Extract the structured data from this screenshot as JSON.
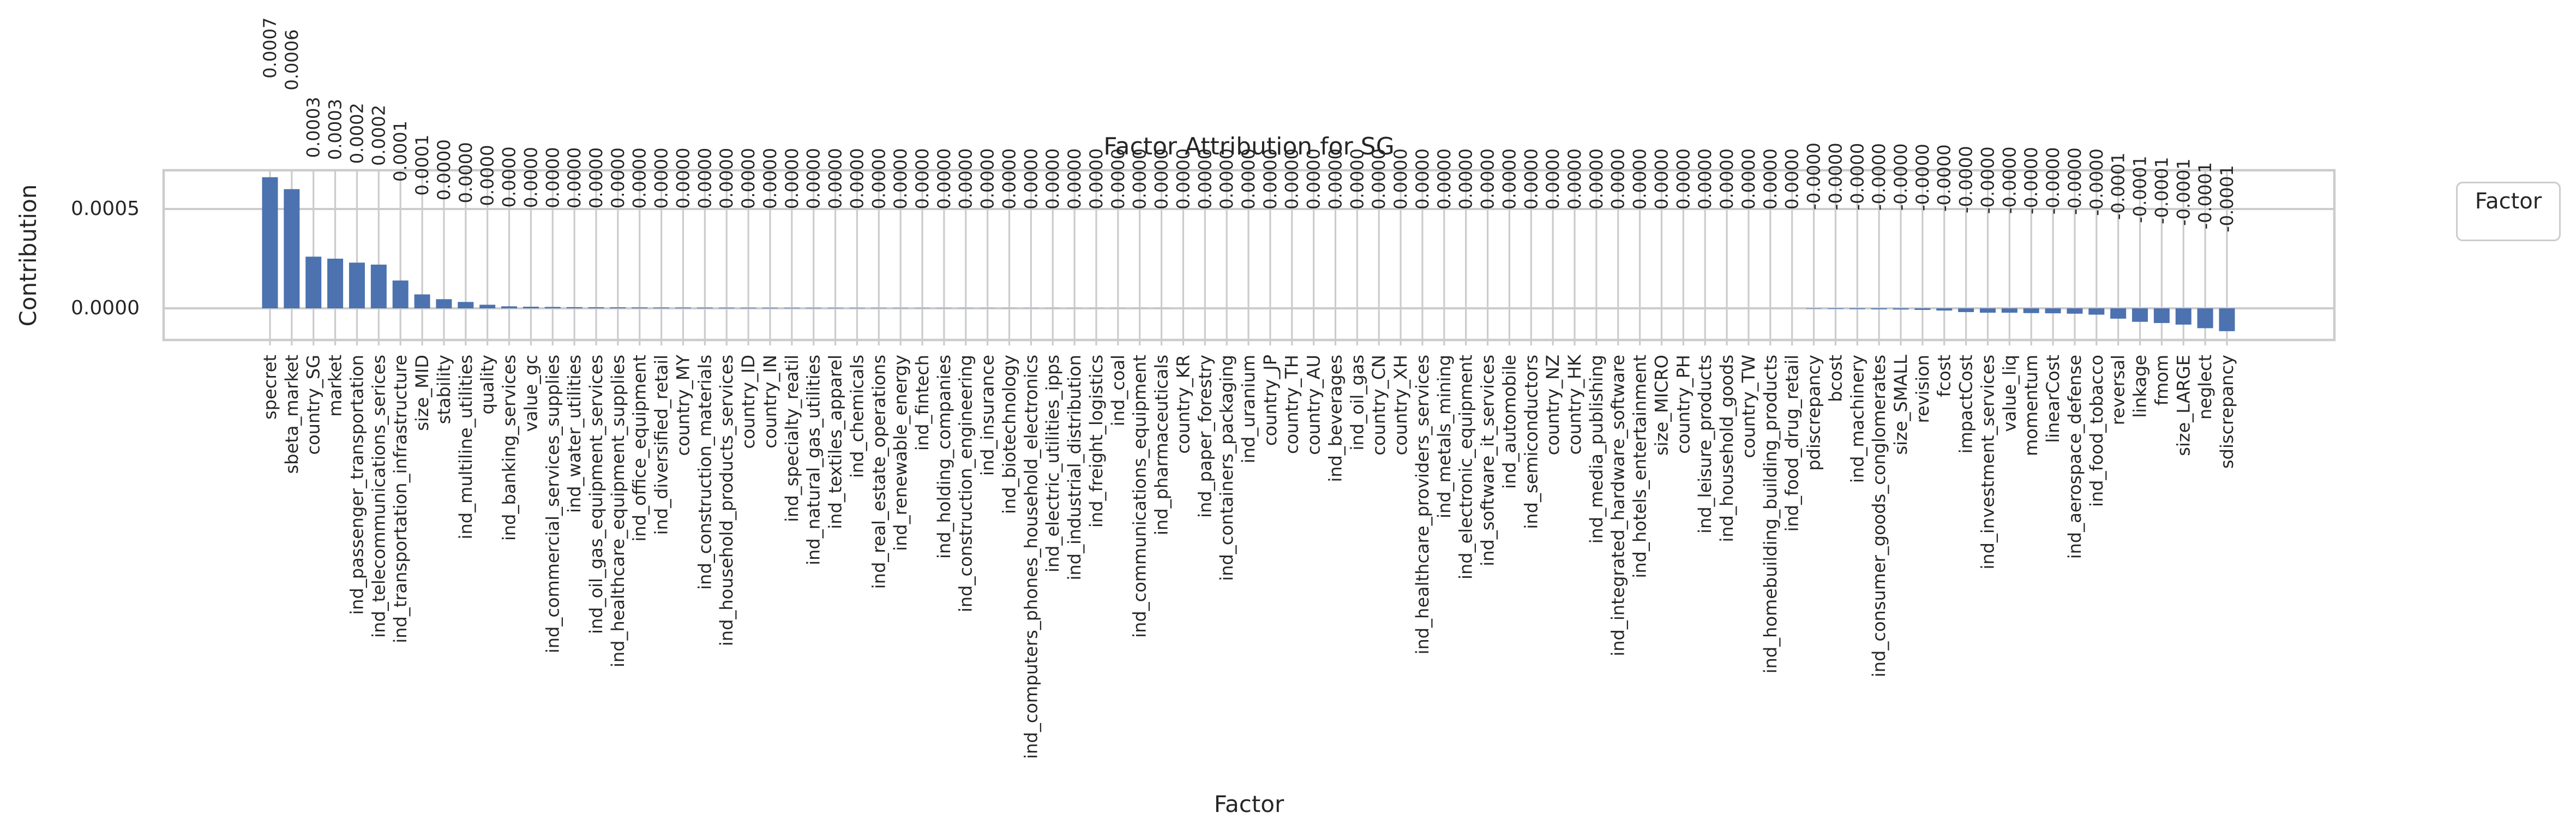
{
  "title": "Factor Attribution for SG",
  "axes": {
    "xlabel": "Factor",
    "ylabel": "Contribution"
  },
  "legend": {
    "title": "Factor"
  },
  "yticks": {
    "labels": [
      "0.0005",
      "0.0000"
    ],
    "values": [
      0.0005,
      0.0
    ]
  },
  "colors": {
    "bar": "#4C72B0",
    "grid": "#cccccc",
    "spine": "#cccccc",
    "text": "#262626",
    "background": "#ffffff"
  },
  "chart_data": {
    "type": "bar",
    "title": "Factor Attribution for SG",
    "xlabel": "Factor",
    "ylabel": "Contribution",
    "ylim": [
      -0.000159,
      0.000695
    ],
    "grid": "on",
    "legend_position": "right",
    "categories": [
      "specret",
      "sbeta_market",
      "country_SG",
      "market",
      "ind_passenger_transportation",
      "ind_telecommunications_serices",
      "ind_transportation_infrastructure",
      "size_MID",
      "stability",
      "ind_multiline_utilities",
      "quality",
      "ind_banking_services",
      "value_gc",
      "ind_commercial_services_supplies",
      "ind_water_utilities",
      "ind_oil_gas_equipment_services",
      "ind_healthcare_equipment_supplies",
      "ind_office_equipment",
      "ind_diversified_retail",
      "country_MY",
      "ind_construction_materials",
      "ind_household_products_services",
      "country_ID",
      "country_IN",
      "ind_specialty_reatil",
      "ind_natural_gas_utilities",
      "ind_textiles_apparel",
      "ind_chemicals",
      "ind_real_estate_operations",
      "ind_renewable_energy",
      "ind_fintech",
      "ind_holding_companies",
      "ind_construction_engineering",
      "ind_insurance",
      "ind_biotechnology",
      "ind_computers_phones_household_electronics",
      "ind_electric_utilities_ipps",
      "ind_industrial_distribution",
      "ind_freight_logistics",
      "ind_coal",
      "ind_communications_equipment",
      "ind_pharmaceuticals",
      "country_KR",
      "ind_paper_forestry",
      "ind_containers_packaging",
      "ind_uranium",
      "country_JP",
      "country_TH",
      "country_AU",
      "ind_beverages",
      "ind_oil_gas",
      "country_CN",
      "country_XH",
      "ind_healthcare_providers_services",
      "ind_metals_mining",
      "ind_electronic_equipment",
      "ind_software_it_services",
      "ind_automobile",
      "ind_semiconductors",
      "country_NZ",
      "country_HK",
      "ind_media_publishing",
      "ind_integrated_hardware_software",
      "ind_hotels_entertainment",
      "size_MICRO",
      "country_PH",
      "ind_leisure_products",
      "ind_household_goods",
      "country_TW",
      "ind_homebuilding_building_products",
      "ind_food_drug_retail",
      "pdiscrepancy",
      "bcost",
      "ind_machinery",
      "ind_consumer_goods_conglomerates",
      "size_SMALL",
      "revision",
      "fcost",
      "impactCost",
      "ind_investment_services",
      "value_liq",
      "momentum",
      "linearCost",
      "ind_aerospace_defense",
      "ind_food_tobacco",
      "reversal",
      "linkage",
      "fmom",
      "size_LARGE",
      "neglect",
      "sdiscrepancy"
    ],
    "values": [
      0.00066,
      0.0006,
      0.00026,
      0.00025,
      0.00023,
      0.00022,
      0.00014,
      7e-05,
      4.6e-05,
      3.2e-05,
      1.8e-05,
      1e-05,
      8e-06,
      7e-06,
      6e-06,
      5.5e-06,
      5e-06,
      4.5e-06,
      4e-06,
      3.8e-06,
      3.5e-06,
      3.2e-06,
      2.9e-06,
      2.7e-06,
      2.5e-06,
      2.3e-06,
      2.1e-06,
      1.9e-06,
      1.7e-06,
      1.5e-06,
      1.3e-06,
      1.2e-06,
      1.1e-06,
      1e-06,
      9e-07,
      8e-07,
      7e-07,
      6.5e-07,
      6e-07,
      5.5e-07,
      5e-07,
      4.5e-07,
      4e-07,
      3.5e-07,
      3e-07,
      2.5e-07,
      2e-07,
      1.8e-07,
      1.5e-07,
      1.2e-07,
      1e-07,
      8e-08,
      6e-08,
      5e-08,
      4e-08,
      3.5e-08,
      3e-08,
      2.5e-08,
      2e-08,
      1.8e-08,
      1.5e-08,
      1.2e-08,
      1e-08,
      8e-09,
      6e-09,
      5e-09,
      4e-09,
      3e-09,
      2e-09,
      1e-09,
      0.0,
      -2e-06,
      -3e-06,
      -4e-06,
      -5e-06,
      -6e-06,
      -8e-06,
      -1.1e-05,
      -1.9e-05,
      -2.2e-05,
      -2.2e-05,
      -2.4e-05,
      -2.5e-05,
      -2.7e-05,
      -3.2e-05,
      -5.2e-05,
      -6.8e-05,
      -7.4e-05,
      -8.2e-05,
      -0.0001,
      -0.000115
    ],
    "bar_labels": [
      "0.0007",
      "0.0006",
      "0.0003",
      "0.0003",
      "0.0002",
      "0.0002",
      "0.0001",
      "0.0001",
      "0.0000",
      "0.0000",
      "0.0000",
      "0.0000",
      "0.0000",
      "0.0000",
      "0.0000",
      "0.0000",
      "0.0000",
      "0.0000",
      "0.0000",
      "0.0000",
      "0.0000",
      "0.0000",
      "0.0000",
      "0.0000",
      "0.0000",
      "0.0000",
      "0.0000",
      "0.0000",
      "0.0000",
      "0.0000",
      "0.0000",
      "0.0000",
      "0.0000",
      "0.0000",
      "0.0000",
      "0.0000",
      "0.0000",
      "0.0000",
      "0.0000",
      "0.0000",
      "0.0000",
      "0.0000",
      "0.0000",
      "0.0000",
      "0.0000",
      "0.0000",
      "0.0000",
      "0.0000",
      "0.0000",
      "0.0000",
      "0.0000",
      "0.0000",
      "0.0000",
      "0.0000",
      "0.0000",
      "0.0000",
      "0.0000",
      "0.0000",
      "0.0000",
      "0.0000",
      "0.0000",
      "0.0000",
      "0.0000",
      "0.0000",
      "0.0000",
      "0.0000",
      "0.0000",
      "0.0000",
      "0.0000",
      "0.0000",
      "0.0000",
      "-0.0000",
      "-0.0000",
      "-0.0000",
      "-0.0000",
      "-0.0000",
      "-0.0000",
      "-0.0000",
      "-0.0000",
      "-0.0000",
      "-0.0000",
      "-0.0000",
      "-0.0000",
      "-0.0000",
      "-0.0000",
      "-0.0001",
      "-0.0001",
      "-0.0001",
      "-0.0001",
      "-0.0001",
      "-0.0001"
    ]
  }
}
